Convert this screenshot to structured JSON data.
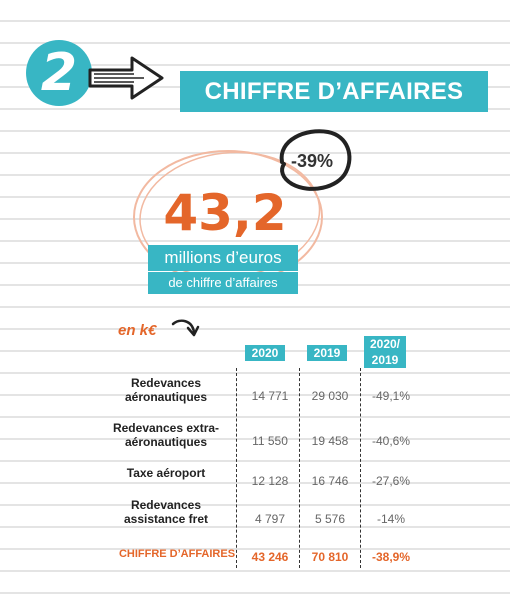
{
  "section_number": "2",
  "title": "CHIFFRE D’AFFAIRES",
  "kpi": {
    "value": "43,2",
    "line1": "millions d’euros",
    "line2": "de chiffre d’affaires",
    "change_badge": "-39%"
  },
  "unit_label": "en k€",
  "table": {
    "headers": [
      "2020",
      "2019",
      "2020/\n2019"
    ],
    "rows": [
      {
        "label": "Redevances\naéronautiques",
        "v2020": "14 771",
        "v2019": "29 030",
        "change": "-49,1%"
      },
      {
        "label": "Redevances extra-\naéronautiques",
        "v2020": "11 550",
        "v2019": "19 458",
        "change": "-40,6%"
      },
      {
        "label": "Taxe aéroport",
        "v2020": "12 128",
        "v2019": "16 746",
        "change": "-27,6%"
      },
      {
        "label": "Redevances\nassistance fret",
        "v2020": "4 797",
        "v2019": "5 576",
        "change": "-14%"
      }
    ],
    "total": {
      "label": "CHIFFRE D’AFFAIRES",
      "v2020": "43 246",
      "v2019": "70 810",
      "change": "-38,9%"
    }
  },
  "colors": {
    "accent": "#38b6c4",
    "highlight": "#e4662a"
  }
}
